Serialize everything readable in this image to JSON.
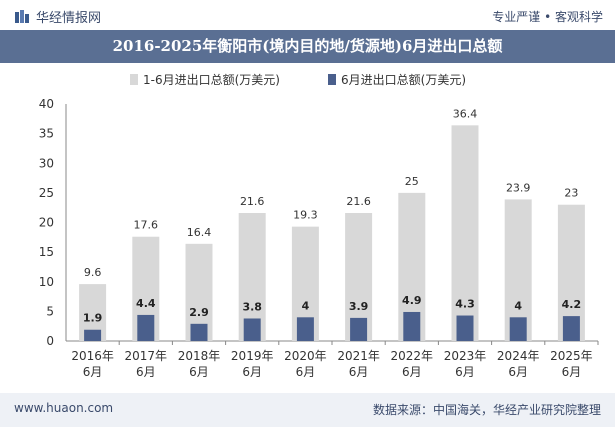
{
  "header": {
    "brand": "华经情报网",
    "slogan": "专业严谨 • 客观科学"
  },
  "footer": {
    "site": "www.huaon.com",
    "source": "数据来源：中国海关，华经产业研究院整理"
  },
  "chart_data": {
    "type": "bar",
    "title": "2016-2025年衡阳市(境内目的地/货源地)6月进出口总额",
    "categories": [
      "2016年\n6月",
      "2017年\n6月",
      "2018年\n6月",
      "2019年\n6月",
      "2020年\n6月",
      "2021年\n6月",
      "2022年\n6月",
      "2023年\n6月",
      "2024年\n6月",
      "2025年\n6月"
    ],
    "series": [
      {
        "name": "1-6月进出口总额(万美元)",
        "values": [
          9.6,
          17.6,
          16.4,
          21.6,
          19.3,
          21.6,
          25,
          36.4,
          23.9,
          23
        ],
        "color": "#d8d8d8"
      },
      {
        "name": "6月进出口总额(万美元)",
        "values": [
          1.9,
          4.4,
          2.9,
          3.8,
          4,
          3.9,
          4.9,
          4.3,
          4,
          4.2
        ],
        "color": "#4a5f8c"
      }
    ],
    "ylim": [
      0,
      40
    ],
    "yticks": [
      0,
      5,
      10,
      15,
      20,
      25,
      30,
      35,
      40
    ],
    "grid": false,
    "legend": "top"
  }
}
